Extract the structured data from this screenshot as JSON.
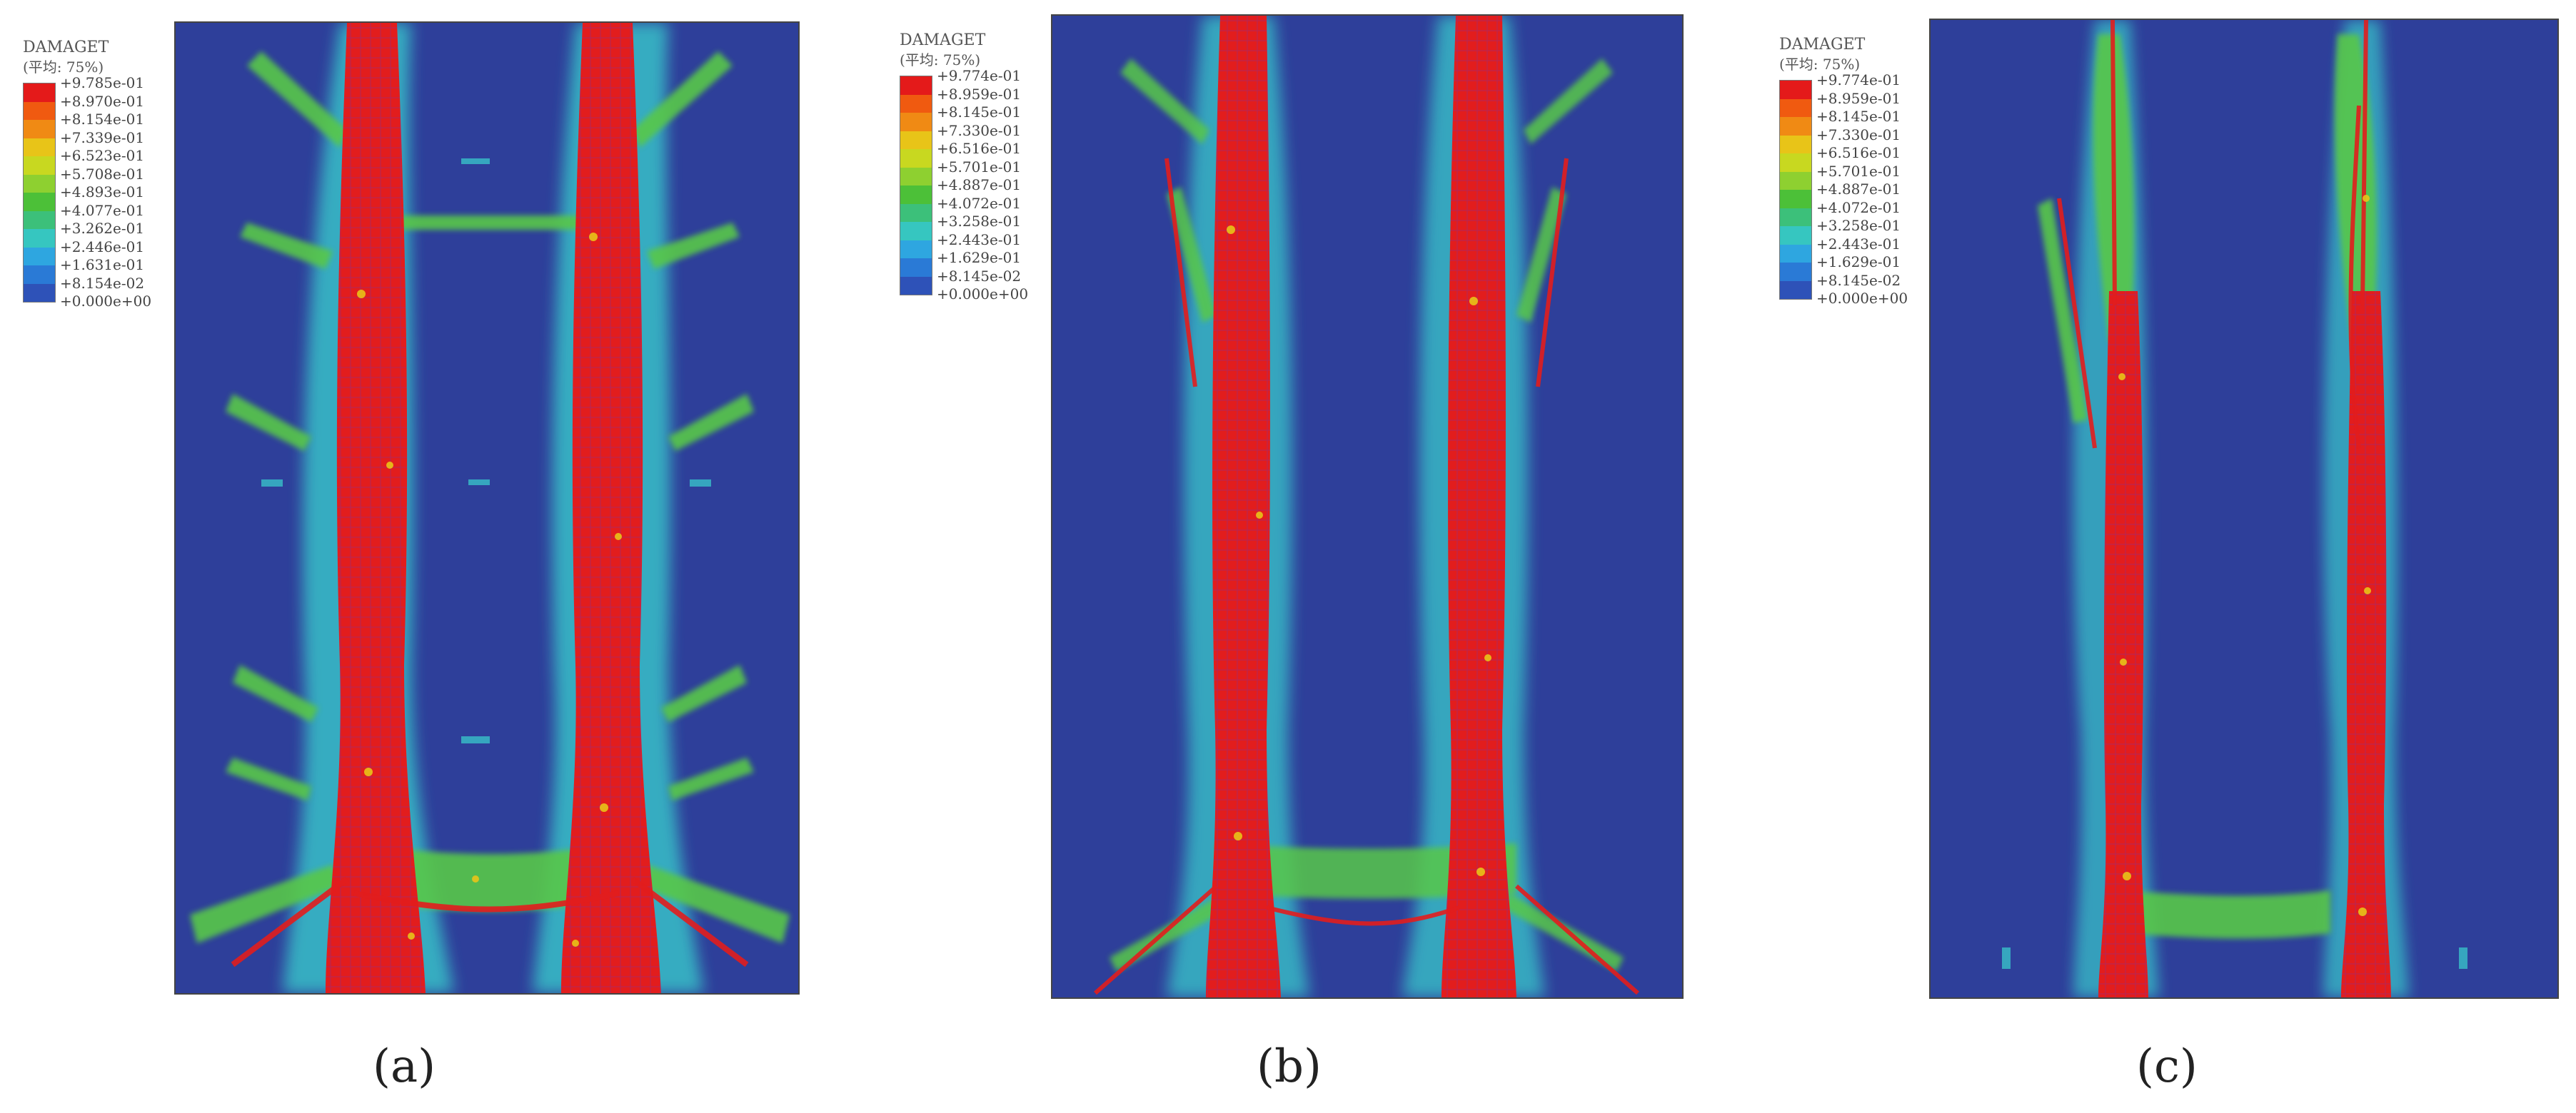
{
  "panels": [
    {
      "caption": "(a)",
      "legend": {
        "title": "DAMAGET",
        "subtitle": "(平均: 75%)",
        "labels": [
          "+9.785e-01",
          "+8.970e-01",
          "+8.154e-01",
          "+7.339e-01",
          "+6.523e-01",
          "+5.708e-01",
          "+4.893e-01",
          "+4.077e-01",
          "+3.262e-01",
          "+2.446e-01",
          "+1.631e-01",
          "+8.154e-02",
          "+0.000e+00"
        ]
      }
    },
    {
      "caption": "(b)",
      "legend": {
        "title": "DAMAGET",
        "subtitle": "(平均: 75%)",
        "labels": [
          "+9.774e-01",
          "+8.959e-01",
          "+8.145e-01",
          "+7.330e-01",
          "+6.516e-01",
          "+5.701e-01",
          "+4.887e-01",
          "+4.072e-01",
          "+3.258e-01",
          "+2.443e-01",
          "+1.629e-01",
          "+8.145e-02",
          "+0.000e+00"
        ]
      }
    },
    {
      "caption": "(c)",
      "legend": {
        "title": "DAMAGET",
        "subtitle": "(平均: 75%)",
        "labels": [
          "+9.774e-01",
          "+8.959e-01",
          "+8.145e-01",
          "+7.330e-01",
          "+6.516e-01",
          "+5.701e-01",
          "+4.887e-01",
          "+4.072e-01",
          "+3.258e-01",
          "+2.443e-01",
          "+1.629e-01",
          "+8.145e-02",
          "+0.000e+00"
        ]
      }
    }
  ],
  "colors": {
    "scale": [
      "#e41a1a",
      "#f05a10",
      "#f08a14",
      "#e8c418",
      "#c8d820",
      "#8ed030",
      "#4cc038",
      "#3cc07a",
      "#36c6c0",
      "#2ea6e0",
      "#2a7ad6",
      "#2e52b8"
    ],
    "background": "#2e3f9a",
    "damage_red": "#e21d1d",
    "damage_yellow": "#e8c418",
    "damage_green": "#58c848",
    "damage_cyan": "#38c0c8",
    "damage_lightblue": "#2f7fd0"
  }
}
